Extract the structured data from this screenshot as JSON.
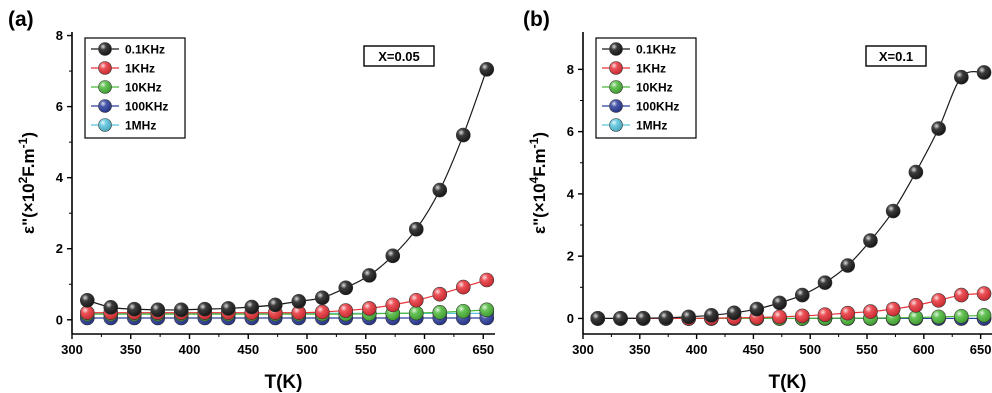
{
  "chart_data": [
    {
      "type": "line",
      "panel_label": "(a)",
      "annotation": "X=0.05",
      "xlabel": "T(K)",
      "ylabel": {
        "pre": "ε\"(×10",
        "sup1": "2",
        "mid": "F.m",
        "sup2": "-1",
        "post": ")"
      },
      "xlim": [
        300,
        660
      ],
      "ylim": [
        -0.4,
        8.1
      ],
      "xticks": [
        300,
        350,
        400,
        450,
        500,
        550,
        600,
        650
      ],
      "yticks": [
        0,
        2,
        4,
        6,
        8
      ],
      "x": [
        313,
        333,
        353,
        373,
        393,
        413,
        433,
        453,
        473,
        493,
        513,
        533,
        553,
        573,
        593,
        613,
        633,
        653
      ],
      "series": [
        {
          "name": "0.1KHz",
          "color": "#1a1a1a",
          "values": [
            0.55,
            0.35,
            0.3,
            0.28,
            0.28,
            0.3,
            0.32,
            0.36,
            0.42,
            0.52,
            0.62,
            0.9,
            1.25,
            1.8,
            2.55,
            3.65,
            5.2,
            7.05
          ]
        },
        {
          "name": "1KHz",
          "color": "#e8333a",
          "values": [
            0.2,
            0.2,
            0.2,
            0.2,
            0.2,
            0.2,
            0.2,
            0.2,
            0.2,
            0.2,
            0.22,
            0.26,
            0.32,
            0.42,
            0.55,
            0.72,
            0.92,
            1.12
          ]
        },
        {
          "name": "10KHz",
          "color": "#4cb83a",
          "values": [
            0.16,
            0.16,
            0.16,
            0.16,
            0.16,
            0.16,
            0.16,
            0.16,
            0.16,
            0.16,
            0.16,
            0.16,
            0.17,
            0.18,
            0.19,
            0.21,
            0.24,
            0.28
          ]
        },
        {
          "name": "100KHz",
          "color": "#2c3d9c",
          "values": [
            0.05,
            0.05,
            0.05,
            0.05,
            0.05,
            0.05,
            0.05,
            0.05,
            0.05,
            0.05,
            0.05,
            0.05,
            0.05,
            0.05,
            0.05,
            0.05,
            0.05,
            0.05
          ]
        },
        {
          "name": "1MHz",
          "color": "#58c4dd",
          "values": [
            0.18,
            0.18,
            0.18,
            0.18,
            0.18,
            0.18,
            0.18,
            0.18,
            0.18,
            0.18,
            0.18,
            0.18,
            0.18,
            0.18,
            0.18,
            0.18,
            0.18,
            0.18
          ]
        }
      ],
      "legend": "top-left",
      "grid": false
    },
    {
      "type": "line",
      "panel_label": "(b)",
      "annotation": "X=0.1",
      "xlabel": "T(K)",
      "ylabel": {
        "pre": "ε\"(×10",
        "sup1": "4",
        "mid": "F.m",
        "sup2": "-1",
        "post": ")"
      },
      "xlim": [
        300,
        660
      ],
      "ylim": [
        -0.5,
        9.2
      ],
      "xticks": [
        300,
        350,
        400,
        450,
        500,
        550,
        600,
        650
      ],
      "yticks": [
        0,
        2,
        4,
        6,
        8
      ],
      "x": [
        313,
        333,
        353,
        373,
        393,
        413,
        433,
        453,
        473,
        493,
        513,
        533,
        553,
        573,
        593,
        613,
        633,
        653
      ],
      "series": [
        {
          "name": "0.1KHz",
          "color": "#1a1a1a",
          "values": [
            0.0,
            0.0,
            0.01,
            0.02,
            0.05,
            0.1,
            0.18,
            0.3,
            0.5,
            0.75,
            1.15,
            1.7,
            2.5,
            3.45,
            4.7,
            6.1,
            7.75,
            7.9
          ]
        },
        {
          "name": "1KHz",
          "color": "#e8333a",
          "values": [
            0.0,
            0.0,
            0.0,
            0.0,
            0.0,
            0.01,
            0.02,
            0.03,
            0.05,
            0.08,
            0.12,
            0.17,
            0.22,
            0.3,
            0.42,
            0.58,
            0.75,
            0.8
          ]
        },
        {
          "name": "10KHz",
          "color": "#4cb83a",
          "values": [
            0.0,
            0.0,
            0.0,
            0.0,
            0.0,
            0.0,
            0.0,
            0.0,
            0.0,
            0.0,
            0.01,
            0.01,
            0.01,
            0.02,
            0.03,
            0.05,
            0.07,
            0.1
          ]
        },
        {
          "name": "100KHz",
          "color": "#2c3d9c",
          "values": [
            0.0,
            0.0,
            0.0,
            0.0,
            0.0,
            0.0,
            0.0,
            0.0,
            0.0,
            0.0,
            0.0,
            0.0,
            0.0,
            0.0,
            0.0,
            0.0,
            0.0,
            0.0
          ]
        },
        {
          "name": "1MHz",
          "color": "#58c4dd",
          "values": [
            0.0,
            0.0,
            0.0,
            0.0,
            0.0,
            0.0,
            0.0,
            0.0,
            0.0,
            0.0,
            0.0,
            0.0,
            0.0,
            0.0,
            0.0,
            0.0,
            0.0,
            0.0
          ]
        }
      ],
      "legend": "top-left",
      "grid": false
    }
  ]
}
